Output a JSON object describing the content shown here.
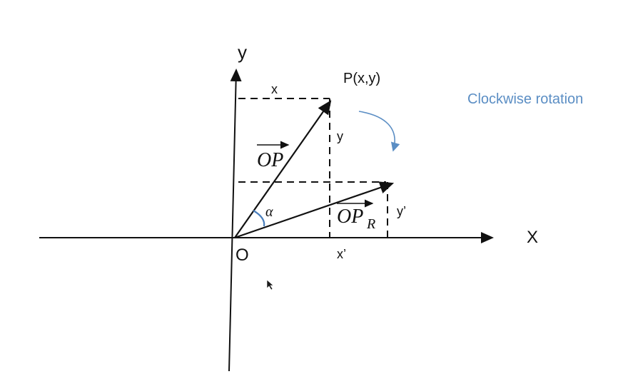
{
  "axes": {
    "x_label": "X",
    "y_label": "y",
    "origin_label": "O"
  },
  "point": {
    "label": "P(x,y)",
    "x_label": "x",
    "y_label": "y"
  },
  "rotated": {
    "x_label": "x’",
    "y_label": "y’"
  },
  "vectors": {
    "original": "OP",
    "rotated_base": "OP",
    "rotated_subscript": "R"
  },
  "angle": {
    "label": "α"
  },
  "annotation": {
    "text": "Clockwise rotation"
  },
  "colors": {
    "ink": "#111111",
    "annotation": "#5b8ec4",
    "angle_arc": "#4a7fbd"
  }
}
